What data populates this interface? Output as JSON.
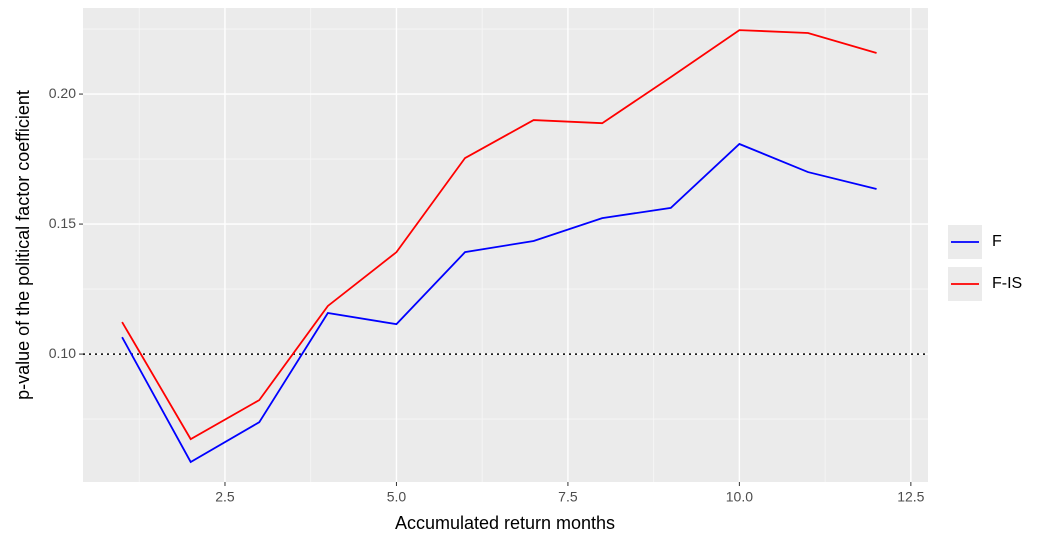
{
  "chart_data": {
    "type": "line",
    "x_label": "Accumulated return months",
    "y_label": "p-value of the political factor coefficient",
    "x": [
      1,
      2,
      3,
      4,
      5,
      6,
      7,
      8,
      9,
      10,
      11,
      12
    ],
    "series": [
      {
        "name": "F",
        "color": "#0000ff",
        "values": [
          0.1065,
          0.0585,
          0.0738,
          0.1158,
          0.1115,
          0.1392,
          0.1435,
          0.1523,
          0.1562,
          0.1808,
          0.17,
          0.1635
        ]
      },
      {
        "name": "F-IS",
        "color": "#ff0000",
        "values": [
          0.1123,
          0.0673,
          0.0823,
          0.1185,
          0.1392,
          0.1754,
          0.19,
          0.1888,
          0.2065,
          0.2246,
          0.2235,
          0.2158
        ]
      }
    ],
    "hline": 0.1,
    "xlim": [
      0.43,
      12.75
    ],
    "ylim": [
      0.0508,
      0.2331
    ],
    "xticks": [
      2.5,
      {
        "value": 5,
        "label": "5.0"
      },
      7.5,
      {
        "value": 10,
        "label": "10.0"
      },
      12.5
    ],
    "yticks": [
      {
        "value": 0.1,
        "label": "0.10"
      },
      {
        "value": 0.15,
        "label": "0.15"
      },
      {
        "value": 0.2,
        "label": "0.20"
      }
    ],
    "grid": true,
    "legend_position": "right"
  }
}
